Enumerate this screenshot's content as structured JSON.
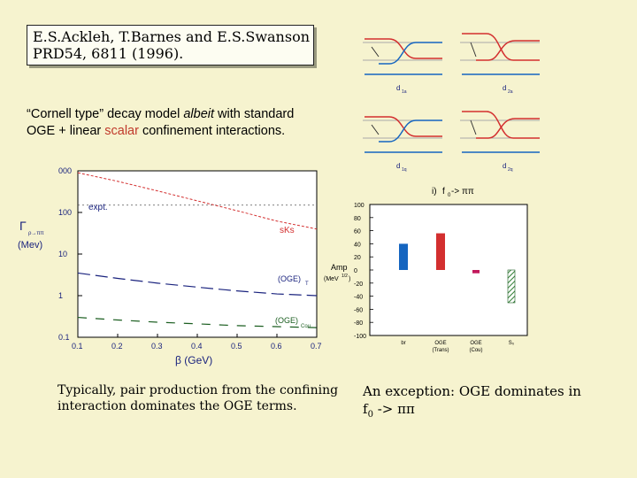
{
  "reference": {
    "line1": "E.S.Ackleh, T.Barnes and E.S.Swanson",
    "line2": "PRD54, 6811 (1996)."
  },
  "description": {
    "open_quote": "“",
    "part1": "Cornell type",
    "close_quote": "”",
    "part2": " decay model ",
    "albeit": "albeit",
    "part3": " with standard",
    "line2_a": "OGE + linear ",
    "scalar": "scalar",
    "line2_b": " confinement interactions."
  },
  "diagrams": {
    "labels": [
      "d",
      "d",
      "d",
      "d"
    ],
    "sublabels": [
      "1a",
      "2a",
      "1q",
      "2q"
    ]
  },
  "captions": {
    "left": "Typically, pair production from the confining interaction dominates the OGE terms.",
    "right_line1": "An exception:  OGE dominates in",
    "right_f": "f",
    "right_sub": "0",
    "right_tail": " -> ππ"
  },
  "colors": {
    "background": "#f6f3cf",
    "red": "#d32f2f",
    "blue": "#1565c0",
    "green": "#1b5e20",
    "magenta": "#c2185b"
  },
  "chart_data": [
    {
      "type": "line",
      "ylabel": "Γ",
      "ylabel_sub": "ρ→ππ",
      "ylabel_unit": "(Mev)",
      "xlabel": "β (GeV)",
      "yscale": "log",
      "ylim": [
        0.1,
        1000
      ],
      "xlim": [
        0.1,
        0.7
      ],
      "x_ticks": [
        "0.1",
        "0.2",
        "0.3",
        "0.4",
        "0.5",
        "0.6",
        "0.7"
      ],
      "y_ticks": [
        "0.1",
        "1",
        "10",
        "100",
        "000"
      ],
      "expt_label": "expt.",
      "expt_value": 150,
      "series": [
        {
          "name": "sKs",
          "label_main": "sKs",
          "label_sub": "",
          "x": [
            0.1,
            0.2,
            0.3,
            0.4,
            0.5,
            0.6,
            0.7
          ],
          "y": [
            900,
            560,
            330,
            190,
            110,
            62,
            40
          ]
        },
        {
          "name": "(OGE)T",
          "label_main": "(OGE)",
          "label_sub": "T",
          "x": [
            0.1,
            0.2,
            0.3,
            0.4,
            0.5,
            0.6,
            0.7
          ],
          "y": [
            3.5,
            2.6,
            2.0,
            1.6,
            1.3,
            1.1,
            1.0
          ]
        },
        {
          "name": "(OGE)Cou",
          "label_main": "(OGE)",
          "label_sub": "Cou",
          "x": [
            0.1,
            0.2,
            0.3,
            0.4,
            0.5,
            0.6,
            0.7
          ],
          "y": [
            0.3,
            0.26,
            0.23,
            0.21,
            0.19,
            0.18,
            0.17
          ]
        }
      ]
    },
    {
      "type": "bar",
      "title_prefix": "i) ",
      "title_f": "f",
      "title_sub": "0",
      "title_tail": " -> ππ",
      "ylabel": "Amp",
      "ylabel_unit": "(MeV",
      "ylabel_unit_sup": "1/2",
      "ylabel_unit_close": ")",
      "ylim": [
        -100,
        100
      ],
      "y_ticks": [
        "100",
        "80",
        "60",
        "40",
        "20",
        "0",
        "-20",
        "-40",
        "-60",
        "-80",
        "-100"
      ],
      "categories": [
        "br",
        "OGE\n(Trans)",
        "OGE\n(Cou)",
        "S₀"
      ],
      "values": [
        40,
        56,
        -5,
        -50
      ]
    }
  ]
}
